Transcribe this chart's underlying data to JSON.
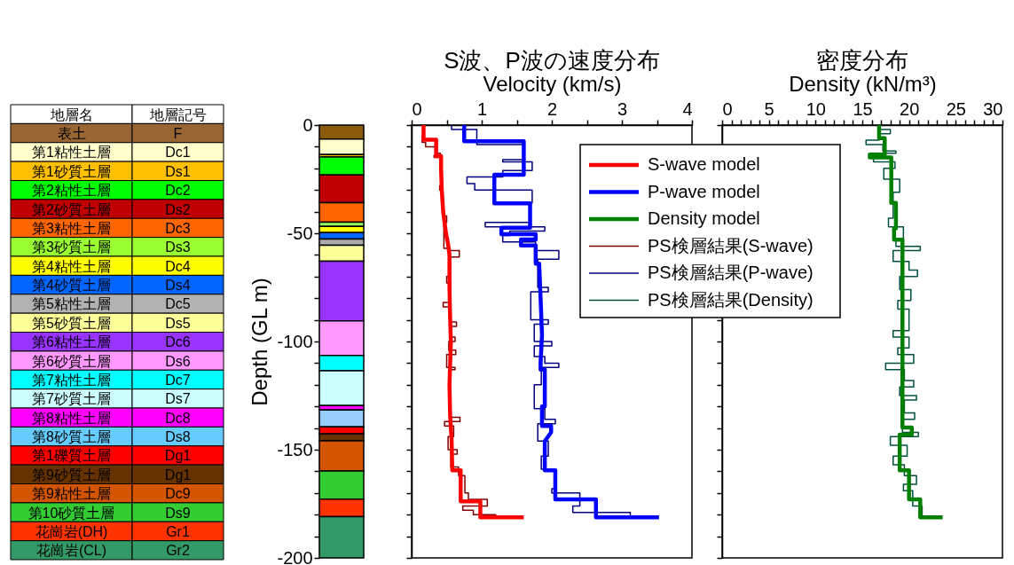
{
  "chart_data": [
    {
      "type": "other",
      "annotations": [
        "地層名",
        "地層記号",
        "表土",
        "F",
        "第1粘性土層",
        "Dc1",
        "第1砂質土層",
        "Ds1",
        "第2粘性土層",
        "Dc2",
        "第2砂質土層",
        "Ds2",
        "第3粘性土層",
        "Dc3",
        "第3砂質土層",
        "Ds3",
        "第4粘性土層",
        "Dc4",
        "第4砂質土層",
        "Ds4",
        "第5粘性土層",
        "Dc5",
        "第5砂質土層",
        "Ds5",
        "第6粘性土層",
        "Dc6",
        "第6砂質土層",
        "Ds6",
        "第7粘性土層",
        "Dc7",
        "第7砂質土層",
        "Ds7",
        "第8粘性土層",
        "Dc8",
        "第8砂質土層",
        "Ds8",
        "第1礫質土層",
        "Dg1",
        "第9砂質土層",
        "Dg1",
        "第9粘性土層",
        "Dc9",
        "第10砂質土層",
        "Ds9",
        "花崗岩(DH)",
        "Gr1",
        "花崗岩(CL)",
        "Gr2"
      ],
      "colors": [
        "#996633",
        "#ffffcc",
        "#ffc000",
        "#00ff00",
        "#c00000",
        "#ff6600",
        "#99ff33",
        "#ffff00",
        "#0066ff",
        "#b2b2b2",
        "#ffff99",
        "#9933ff",
        "#ff99ff",
        "#00ffff",
        "#ccffff",
        "#ff00ff",
        "#66ccff",
        "#ff0000",
        "#663300",
        "#d45500",
        "#33cc33",
        "#ff3300",
        "#339966"
      ]
    },
    {
      "type": "bar",
      "stacked": true,
      "categories": [
        null
      ],
      "ylabel": "Depth (GL m)",
      "ylim": [
        -200,
        0
      ],
      "yticks": [
        0,
        {
          "value": -10,
          "label": null
        },
        {
          "value": -20,
          "label": null
        },
        {
          "value": -30,
          "label": null
        },
        {
          "value": -40,
          "label": null
        },
        -50,
        {
          "value": -60,
          "label": null
        },
        {
          "value": -70,
          "label": null
        },
        {
          "value": -80,
          "label": null
        },
        {
          "value": -90,
          "label": null
        },
        -100,
        {
          "value": -110,
          "label": null
        },
        {
          "value": -120,
          "label": null
        },
        {
          "value": -130,
          "label": null
        },
        {
          "value": -140,
          "label": null
        },
        -150,
        {
          "value": -160,
          "label": null
        },
        {
          "value": -170,
          "label": null
        },
        {
          "value": -180,
          "label": null
        },
        {
          "value": -190,
          "label": null
        },
        -200
      ],
      "series": [
        {
          "color": "#8b5a0a",
          "values": [
            -6.5
          ]
        },
        {
          "color": "#ffffcc",
          "values": [
            -7.1
          ]
        },
        {
          "color": "#ffc000",
          "values": [
            -1.2
          ]
        },
        {
          "color": "#00ff00",
          "values": [
            -8.3
          ]
        },
        {
          "color": "#c00000",
          "values": [
            -12.8
          ]
        },
        {
          "color": "#ff6600",
          "values": [
            -9.0
          ]
        },
        {
          "color": "#99ff66",
          "values": [
            -1.9
          ]
        },
        {
          "color": "#ffff00",
          "values": [
            -2.9
          ]
        },
        {
          "color": "#0066ff",
          "values": [
            -3.0
          ]
        },
        {
          "color": "#aaaaaa",
          "values": [
            -2.8
          ]
        },
        {
          "color": "#ffff99",
          "values": [
            -7.4
          ]
        },
        {
          "color": "#9933ff",
          "values": [
            -27.6
          ]
        },
        {
          "color": "#ff99ff",
          "values": [
            -16.0
          ]
        },
        {
          "color": "#00ffff",
          "values": [
            -7.0
          ]
        },
        {
          "color": "#ccffff",
          "values": [
            -16.1
          ]
        },
        {
          "color": "#ff00ff",
          "values": [
            -2.1
          ]
        },
        {
          "color": "#99ccff",
          "values": [
            -7.7
          ]
        },
        {
          "color": "#ff0000",
          "values": [
            -3.3
          ]
        },
        {
          "color": "#663300",
          "values": [
            -3.2
          ]
        },
        {
          "color": "#d45500",
          "values": [
            -13.9
          ]
        },
        {
          "color": "#33cc33",
          "values": [
            -13.0
          ]
        },
        {
          "color": "#ff3300",
          "values": [
            -8.1
          ]
        },
        {
          "color": "#339966",
          "values": [
            -19.1
          ]
        }
      ]
    },
    {
      "type": "line",
      "title": "S波、P波の速度分布",
      "xlabel": "Velocity (km/s)",
      "xlim": [
        0,
        4
      ],
      "xticks": [
        0,
        {
          "value": 0.5,
          "label": null
        },
        1,
        {
          "value": 1.5,
          "label": null
        },
        2,
        {
          "value": 2.5,
          "label": null
        },
        3,
        {
          "value": 3.5,
          "label": null
        },
        4
      ],
      "ylim": [
        -200,
        0
      ],
      "yticks": [
        0,
        {
          "value": -10,
          "label": null
        },
        {
          "value": -20,
          "label": null
        },
        {
          "value": -30,
          "label": null
        },
        {
          "value": -40,
          "label": null
        },
        -50,
        {
          "value": -60,
          "label": null
        },
        {
          "value": -70,
          "label": null
        },
        {
          "value": -80,
          "label": null
        },
        {
          "value": -90,
          "label": null
        },
        -100,
        {
          "value": -110,
          "label": null
        },
        {
          "value": -120,
          "label": null
        },
        {
          "value": -130,
          "label": null
        },
        {
          "value": -140,
          "label": null
        },
        -150,
        {
          "value": -160,
          "label": null
        },
        {
          "value": -170,
          "label": null
        },
        {
          "value": -180,
          "label": null
        },
        {
          "value": -190,
          "label": null
        },
        -200
      ],
      "tick_labels": "x",
      "legend": "top right",
      "series": [
        {
          "name": "S-wave model",
          "color": "#ff0000",
          "x": [
            0.17,
            0.17,
            0.35,
            0.35,
            0.42,
            0.42,
            0.43,
            0.45,
            0.47,
            0.49,
            0.52,
            0.54,
            0.54,
            0.55,
            0.56,
            0.55,
            0.54,
            0.55,
            0.57,
            0.58,
            0.7,
            0.7,
            0.98,
            0.98,
            1.6
          ],
          "values": [
            0,
            -6.8,
            -6.8,
            -14.3,
            -14.3,
            -20,
            -30,
            -40,
            -45,
            -50,
            -55,
            -60,
            -75,
            -90,
            -100,
            -110,
            -120,
            -135,
            -145,
            -159.5,
            -159.5,
            -173.9,
            -173.9,
            -181.3,
            -181.3
          ]
        },
        {
          "name": "P-wave model",
          "color": "#0000ff",
          "x": [
            0.75,
            0.75,
            1.6,
            1.6,
            1.18,
            1.18,
            1.69,
            1.69,
            1.28,
            1.28,
            1.77,
            1.77,
            1.56,
            1.56,
            1.77,
            1.77,
            1.82,
            1.84,
            1.86,
            1.84,
            1.84,
            1.9,
            1.9,
            1.86,
            1.86,
            1.99,
            1.99,
            1.9,
            1.9,
            2.05,
            2.05,
            2.63,
            2.63,
            3.53
          ],
          "values": [
            0,
            -7.5,
            -7.5,
            -22.9,
            -22.9,
            -36.2,
            -36.2,
            -47.4,
            -47.4,
            -50.4,
            -50.4,
            -52.9,
            -52.9,
            -55.6,
            -55.6,
            -64,
            -64,
            -80,
            -97,
            -110,
            -113,
            -113,
            -130,
            -130,
            -139,
            -139,
            -142,
            -146,
            -159.5,
            -159.5,
            -173,
            -173,
            -181.3,
            -181.3
          ]
        },
        {
          "name": "PS検層結果(S-wave)",
          "color": "#800000",
          "x": [
            0.17,
            0.17,
            0.15,
            0.15,
            0.2,
            0.2,
            0.35,
            0.35,
            0.41,
            0.41,
            0.32,
            0.32,
            0.43,
            0.43,
            0.4,
            0.4,
            0.44,
            0.44,
            0.5,
            0.5,
            0.46,
            0.46,
            0.55,
            0.55,
            0.68,
            0.68,
            0.53,
            0.53,
            0.5,
            0.5,
            0.56,
            0.56,
            0.45,
            0.45,
            0.56,
            0.56,
            0.64,
            0.64,
            0.55,
            0.55,
            0.62,
            0.62,
            0.53,
            0.53,
            0.63,
            0.63,
            0.5,
            0.5,
            0.62,
            0.62,
            0.55,
            0.55,
            0.69,
            0.69,
            0.47,
            0.47,
            0.6,
            0.6,
            0.52,
            0.52,
            0.65,
            0.65,
            0.56,
            0.56,
            0.67,
            0.67,
            0.76,
            0.76,
            0.81,
            0.81,
            1.08,
            1.08,
            0.73,
            0.73,
            0.88,
            0.88,
            1.2,
            1.2,
            0.98
          ],
          "values": [
            0,
            -5,
            -5,
            -8,
            -8,
            -10,
            -10,
            -13,
            -13,
            -14,
            -14,
            -15,
            -15,
            -28,
            -28,
            -30,
            -30,
            -42,
            -42,
            -45,
            -45,
            -57,
            -57,
            -58,
            -58,
            -61,
            -61,
            -70,
            -70,
            -73,
            -73,
            -82,
            -82,
            -84,
            -84,
            -91,
            -91,
            -93,
            -93,
            -98,
            -98,
            -100,
            -100,
            -104,
            -104,
            -106,
            -106,
            -112,
            -112,
            -113,
            -113,
            -135,
            -135,
            -137,
            -137,
            -139,
            -139,
            -144,
            -144,
            -150,
            -150,
            -152,
            -152,
            -158,
            -158,
            -162,
            -162,
            -170,
            -170,
            -173,
            -173,
            -176,
            -176,
            -178,
            -178,
            -180,
            -180,
            -181.3,
            -181.3
          ]
        },
        {
          "name": "PS検層結果(P-wave)",
          "color": "#000080",
          "x": [
            0.57,
            0.57,
            0.93,
            0.93,
            1.6,
            1.6,
            1.3,
            1.3,
            1.72,
            1.72,
            1.3,
            1.3,
            0.79,
            0.79,
            0.9,
            0.9,
            1.72,
            1.72,
            1.69,
            1.69,
            1.05,
            1.05,
            1.9,
            1.9,
            1.4,
            1.4,
            1.3,
            1.3,
            1.77,
            1.77,
            2.1,
            2.1,
            1.8,
            1.8,
            1.95,
            1.95,
            1.7,
            1.7,
            1.95,
            1.95,
            1.75,
            1.75,
            2.0,
            2.0,
            1.75,
            1.75,
            1.9,
            1.9,
            2.1,
            2.1,
            1.85,
            1.85,
            1.75,
            1.75,
            1.9,
            1.9,
            2.05,
            2.05,
            1.8,
            1.8,
            1.95,
            1.95,
            1.85,
            1.85,
            2.05,
            2.05,
            2.0,
            2.0,
            2.4,
            2.4,
            2.3,
            2.3,
            3.12,
            3.12,
            2.63
          ],
          "values": [
            0,
            -2,
            -2,
            -9,
            -9,
            -16,
            -16,
            -17,
            -17,
            -21,
            -21,
            -24,
            -24,
            -27,
            -27,
            -30,
            -30,
            -36,
            -36,
            -45,
            -45,
            -47,
            -47,
            -49,
            -49,
            -51,
            -51,
            -54,
            -54,
            -58,
            -58,
            -62,
            -62,
            -75,
            -75,
            -77,
            -77,
            -90,
            -90,
            -92,
            -92,
            -100,
            -100,
            -102,
            -102,
            -107,
            -107,
            -110,
            -110,
            -112,
            -112,
            -120,
            -120,
            -131,
            -131,
            -136,
            -136,
            -138,
            -138,
            -146,
            -146,
            -153,
            -153,
            -159,
            -159,
            -168,
            -168,
            -170,
            -170,
            -176,
            -176,
            -179,
            -179,
            -181.3,
            -181.3
          ]
        }
      ]
    },
    {
      "type": "line",
      "title": "密度分布",
      "xlabel": "Density (kN/m³)",
      "xlim": [
        0,
        30
      ],
      "xticks": [
        0,
        {
          "value": 1,
          "label": null
        },
        {
          "value": 2,
          "label": null
        },
        {
          "value": 3,
          "label": null
        },
        {
          "value": 4,
          "label": null
        },
        5,
        {
          "value": 6,
          "label": null
        },
        {
          "value": 7,
          "label": null
        },
        {
          "value": 8,
          "label": null
        },
        {
          "value": 9,
          "label": null
        },
        10,
        {
          "value": 11,
          "label": null
        },
        {
          "value": 12,
          "label": null
        },
        {
          "value": 13,
          "label": null
        },
        {
          "value": 14,
          "label": null
        },
        15,
        {
          "value": 16,
          "label": null
        },
        {
          "value": 17,
          "label": null
        },
        {
          "value": 18,
          "label": null
        },
        {
          "value": 19,
          "label": null
        },
        20,
        {
          "value": 21,
          "label": null
        },
        {
          "value": 22,
          "label": null
        },
        {
          "value": 23,
          "label": null
        },
        {
          "value": 24,
          "label": null
        },
        25,
        {
          "value": 26,
          "label": null
        },
        {
          "value": 27,
          "label": null
        },
        {
          "value": 28,
          "label": null
        },
        {
          "value": 29,
          "label": null
        },
        30
      ],
      "ylim": [
        -200,
        0
      ],
      "yticks": [
        0,
        {
          "value": -10,
          "label": null
        },
        {
          "value": -20,
          "label": null
        },
        {
          "value": -30,
          "label": null
        },
        {
          "value": -40,
          "label": null
        },
        -50,
        {
          "value": -60,
          "label": null
        },
        {
          "value": -70,
          "label": null
        },
        {
          "value": -80,
          "label": null
        },
        {
          "value": -90,
          "label": null
        },
        -100,
        {
          "value": -110,
          "label": null
        },
        {
          "value": -120,
          "label": null
        },
        {
          "value": -130,
          "label": null
        },
        {
          "value": -140,
          "label": null
        },
        -150,
        {
          "value": -160,
          "label": null
        },
        {
          "value": -170,
          "label": null
        },
        {
          "value": -180,
          "label": null
        },
        {
          "value": -190,
          "label": null
        },
        -200
      ],
      "tick_labels": "x",
      "legend": "top left",
      "series": [
        {
          "name": "Density model",
          "color": "#008000",
          "x": [
            16.8,
            16.8,
            17.4,
            17.4,
            15.8,
            15.8,
            18.1,
            18.1,
            18.6,
            18.6,
            18.4,
            18.4,
            19.3,
            19.3,
            20.3,
            20.3,
            19.0,
            19.0,
            20.0,
            20.0,
            21.2,
            21.2,
            23.6
          ],
          "values": [
            0,
            -6,
            -6,
            -13.6,
            -13.6,
            -15,
            -15,
            -36,
            -36,
            -47.7,
            -47.7,
            -53,
            -53,
            -139.8,
            -139.8,
            -143,
            -143,
            -159.5,
            -159.5,
            -173,
            -173,
            -181.3,
            -181.3
          ]
        },
        {
          "name": "PS検層結果(Density)",
          "color": "#005040",
          "x": [
            16.8,
            16.8,
            18.0,
            18.0,
            16.8,
            16.8,
            15.4,
            15.4,
            17.2,
            17.2,
            18.6,
            18.6,
            16.2,
            16.2,
            18.5,
            18.5,
            17.3,
            17.3,
            19.0,
            19.0,
            18.3,
            18.3,
            17.8,
            17.8,
            19.4,
            19.4,
            18.6,
            18.6,
            21.2,
            21.2,
            18.3,
            18.3,
            20.0,
            20.0,
            20.9,
            20.9,
            19.0,
            19.0,
            20.2,
            20.2,
            18.8,
            18.8,
            20.0,
            20.0,
            18.3,
            18.3,
            20.0,
            20.0,
            18.8,
            18.8,
            20.5,
            20.5,
            17.5,
            17.5,
            19.5,
            19.5,
            20.5,
            20.5,
            19.0,
            19.0,
            20.8,
            20.8,
            19.5,
            19.5,
            20.6,
            20.6,
            19.3,
            19.3,
            21.0,
            21.0,
            18.0,
            18.0,
            19.8,
            19.8,
            18.3,
            18.3,
            19.5,
            19.5,
            20.8,
            20.8,
            19.4,
            19.4,
            20.4,
            20.4,
            21.4,
            21.4,
            21.2
          ],
          "values": [
            0,
            -2,
            -2,
            -4,
            -4,
            -7,
            -7,
            -9,
            -9,
            -12,
            -12,
            -13,
            -13,
            -17,
            -17,
            -20,
            -20,
            -25,
            -25,
            -31,
            -31,
            -43,
            -43,
            -47,
            -47,
            -53,
            -53,
            -56,
            -56,
            -58,
            -58,
            -63,
            -63,
            -67,
            -67,
            -70,
            -70,
            -76,
            -76,
            -81,
            -81,
            -85,
            -85,
            -95,
            -95,
            -98,
            -98,
            -103,
            -103,
            -106,
            -106,
            -110,
            -110,
            -113,
            -113,
            -118,
            -118,
            -121,
            -121,
            -125,
            -125,
            -127,
            -127,
            -133,
            -133,
            -136,
            -136,
            -142,
            -142,
            -144,
            -144,
            -148,
            -148,
            -153,
            -153,
            -157,
            -157,
            -162,
            -162,
            -166,
            -166,
            -169,
            -169,
            -176,
            -176,
            -181.3,
            -181.3
          ]
        }
      ]
    }
  ]
}
